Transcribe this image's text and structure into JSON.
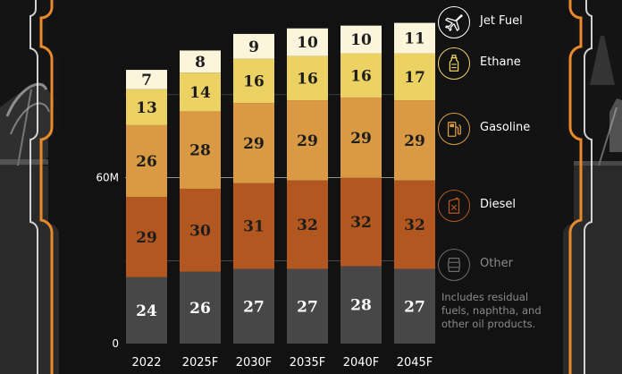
{
  "chart_data": {
    "type": "bar",
    "stacked": true,
    "categories": [
      "2022",
      "2025F",
      "2030F",
      "2035F",
      "2040F",
      "2045F"
    ],
    "series": [
      {
        "name": "Other",
        "values": [
          24,
          26,
          27,
          27,
          28,
          27
        ],
        "color": "#474747",
        "label_color": "#ffffff"
      },
      {
        "name": "Diesel",
        "values": [
          29,
          30,
          31,
          32,
          32,
          32
        ],
        "color": "#b2571f",
        "label_color": "#1d1d1d"
      },
      {
        "name": "Gasoline",
        "values": [
          26,
          28,
          29,
          29,
          29,
          29
        ],
        "color": "#d99a43",
        "label_color": "#1d1d1d"
      },
      {
        "name": "Ethane",
        "values": [
          13,
          14,
          16,
          16,
          16,
          17
        ],
        "color": "#ecd163",
        "label_color": "#1d1d1d"
      },
      {
        "name": "Jet Fuel",
        "values": [
          7,
          8,
          9,
          10,
          10,
          11
        ],
        "color": "#fbf5dc",
        "label_color": "#1d1d1d"
      }
    ],
    "y_ticks": [
      {
        "value": 0,
        "label": "0"
      },
      {
        "value": 60,
        "label": "60M"
      }
    ],
    "ylim": [
      0,
      122
    ],
    "grid": true
  },
  "legend": [
    {
      "name": "Jet Fuel",
      "icon": "airplane-icon"
    },
    {
      "name": "Ethane",
      "icon": "bottle-icon"
    },
    {
      "name": "Gasoline",
      "icon": "fuel-pump-icon"
    },
    {
      "name": "Diesel",
      "icon": "jerry-can-icon"
    },
    {
      "name": "Other",
      "icon": "barrel-icon"
    }
  ],
  "note": "Includes residual fuels, naphtha, and other oil products.",
  "colors": {
    "background": "#141414",
    "frame_orange": "#e8892b",
    "text": "#ffffff",
    "muted": "#8a8a8a"
  }
}
